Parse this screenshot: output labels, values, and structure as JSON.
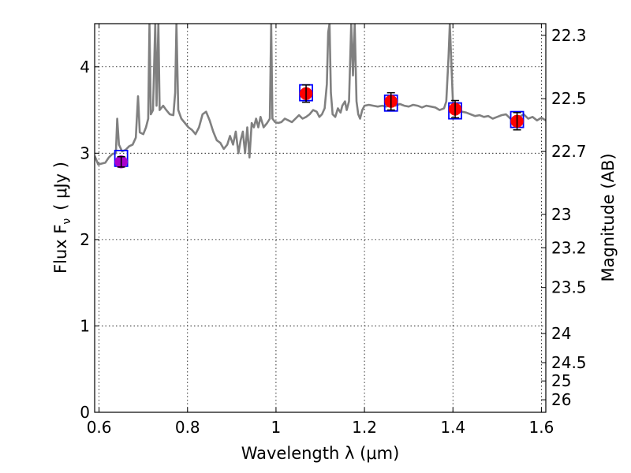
{
  "chart_data": {
    "type": "scatter",
    "title": "",
    "xlabel": "Wavelength  λ (μm)",
    "ylabel": "Flux  F",
    "ylabel_sub": "ν",
    "ylabel_unit": "( μJy )",
    "ylabel_right": "Magnitude (AB)",
    "xlim": [
      0.59,
      1.61
    ],
    "ylim": [
      0,
      4.5
    ],
    "grid": true,
    "x_ticks": [
      0.6,
      0.8,
      1.0,
      1.2,
      1.4,
      1.6
    ],
    "x_tick_labels": [
      "0.6",
      "0.8",
      "1",
      "1.2",
      "1.4",
      "1.6"
    ],
    "y_ticks": [
      0,
      1,
      2,
      3,
      4
    ],
    "y_tick_labels": [
      "0",
      "1",
      "2",
      "3",
      "4"
    ],
    "right_ticks": [
      {
        "flux": 4.365,
        "label": "22.3"
      },
      {
        "flux": 3.631,
        "label": "22.5"
      },
      {
        "flux": 3.02,
        "label": "22.7"
      },
      {
        "flux": 2.291,
        "label": "23"
      },
      {
        "flux": 1.905,
        "label": "23.2"
      },
      {
        "flux": 1.445,
        "label": "23.5"
      },
      {
        "flux": 0.912,
        "label": "24"
      },
      {
        "flux": 0.575,
        "label": "24.5"
      },
      {
        "flux": 0.363,
        "label": "25"
      },
      {
        "flux": 0.145,
        "label": "26"
      }
    ],
    "colors": {
      "spectrum": "#808080",
      "model_box": "#0000ff",
      "photometry": "#ff0000",
      "photometry_first": "#aa00cc",
      "error_bar": "#000000"
    },
    "series": [
      {
        "kind": "spectrum",
        "points": [
          [
            0.59,
            2.97
          ],
          [
            0.598,
            2.87
          ],
          [
            0.606,
            2.88
          ],
          [
            0.614,
            2.89
          ],
          [
            0.622,
            2.95
          ],
          [
            0.63,
            2.99
          ],
          [
            0.638,
            3.0
          ],
          [
            0.641,
            3.4
          ],
          [
            0.645,
            3.1
          ],
          [
            0.652,
            3.02
          ],
          [
            0.66,
            3.04
          ],
          [
            0.668,
            3.08
          ],
          [
            0.676,
            3.1
          ],
          [
            0.683,
            3.18
          ],
          [
            0.688,
            3.66
          ],
          [
            0.692,
            3.24
          ],
          [
            0.7,
            3.22
          ],
          [
            0.706,
            3.3
          ],
          [
            0.711,
            3.4
          ],
          [
            0.714,
            4.5
          ],
          [
            0.717,
            3.45
          ],
          [
            0.722,
            3.5
          ],
          [
            0.727,
            4.5
          ],
          [
            0.73,
            3.55
          ],
          [
            0.734,
            4.5
          ],
          [
            0.737,
            3.5
          ],
          [
            0.745,
            3.55
          ],
          [
            0.752,
            3.5
          ],
          [
            0.76,
            3.45
          ],
          [
            0.768,
            3.44
          ],
          [
            0.772,
            3.7
          ],
          [
            0.775,
            4.5
          ],
          [
            0.779,
            3.5
          ],
          [
            0.786,
            3.4
          ],
          [
            0.794,
            3.35
          ],
          [
            0.802,
            3.3
          ],
          [
            0.81,
            3.27
          ],
          [
            0.818,
            3.22
          ],
          [
            0.826,
            3.3
          ],
          [
            0.834,
            3.45
          ],
          [
            0.842,
            3.48
          ],
          [
            0.85,
            3.38
          ],
          [
            0.858,
            3.25
          ],
          [
            0.866,
            3.15
          ],
          [
            0.874,
            3.12
          ],
          [
            0.882,
            3.05
          ],
          [
            0.89,
            3.1
          ],
          [
            0.896,
            3.2
          ],
          [
            0.903,
            3.1
          ],
          [
            0.909,
            3.25
          ],
          [
            0.915,
            3.0
          ],
          [
            0.92,
            3.15
          ],
          [
            0.925,
            3.25
          ],
          [
            0.93,
            3.0
          ],
          [
            0.935,
            3.3
          ],
          [
            0.94,
            2.95
          ],
          [
            0.945,
            3.35
          ],
          [
            0.95,
            3.3
          ],
          [
            0.955,
            3.4
          ],
          [
            0.96,
            3.3
          ],
          [
            0.965,
            3.42
          ],
          [
            0.972,
            3.3
          ],
          [
            0.98,
            3.35
          ],
          [
            0.986,
            3.4
          ],
          [
            0.989,
            4.5
          ],
          [
            0.992,
            3.4
          ],
          [
            0.998,
            3.36
          ],
          [
            1.005,
            3.35
          ],
          [
            1.012,
            3.36
          ],
          [
            1.02,
            3.4
          ],
          [
            1.028,
            3.38
          ],
          [
            1.036,
            3.36
          ],
          [
            1.044,
            3.4
          ],
          [
            1.052,
            3.44
          ],
          [
            1.06,
            3.4
          ],
          [
            1.068,
            3.42
          ],
          [
            1.076,
            3.45
          ],
          [
            1.084,
            3.5
          ],
          [
            1.092,
            3.48
          ],
          [
            1.098,
            3.42
          ],
          [
            1.104,
            3.45
          ],
          [
            1.11,
            3.52
          ],
          [
            1.115,
            3.8
          ],
          [
            1.118,
            4.4
          ],
          [
            1.121,
            4.5
          ],
          [
            1.124,
            3.7
          ],
          [
            1.128,
            3.45
          ],
          [
            1.134,
            3.42
          ],
          [
            1.14,
            3.52
          ],
          [
            1.146,
            3.47
          ],
          [
            1.15,
            3.55
          ],
          [
            1.156,
            3.6
          ],
          [
            1.16,
            3.5
          ],
          [
            1.165,
            3.6
          ],
          [
            1.17,
            4.5
          ],
          [
            1.174,
            3.9
          ],
          [
            1.178,
            4.5
          ],
          [
            1.182,
            3.6
          ],
          [
            1.186,
            3.45
          ],
          [
            1.19,
            3.4
          ],
          [
            1.195,
            3.5
          ],
          [
            1.2,
            3.55
          ],
          [
            1.21,
            3.56
          ],
          [
            1.22,
            3.55
          ],
          [
            1.23,
            3.54
          ],
          [
            1.24,
            3.55
          ],
          [
            1.25,
            3.54
          ],
          [
            1.26,
            3.56
          ],
          [
            1.27,
            3.55
          ],
          [
            1.28,
            3.57
          ],
          [
            1.29,
            3.55
          ],
          [
            1.3,
            3.54
          ],
          [
            1.31,
            3.56
          ],
          [
            1.32,
            3.55
          ],
          [
            1.33,
            3.53
          ],
          [
            1.34,
            3.55
          ],
          [
            1.35,
            3.54
          ],
          [
            1.36,
            3.53
          ],
          [
            1.37,
            3.5
          ],
          [
            1.38,
            3.52
          ],
          [
            1.385,
            3.6
          ],
          [
            1.39,
            4.1
          ],
          [
            1.393,
            4.5
          ],
          [
            1.396,
            4.1
          ],
          [
            1.4,
            3.6
          ],
          [
            1.41,
            3.5
          ],
          [
            1.42,
            3.48
          ],
          [
            1.43,
            3.47
          ],
          [
            1.44,
            3.45
          ],
          [
            1.45,
            3.43
          ],
          [
            1.46,
            3.44
          ],
          [
            1.47,
            3.42
          ],
          [
            1.48,
            3.43
          ],
          [
            1.49,
            3.4
          ],
          [
            1.5,
            3.42
          ],
          [
            1.51,
            3.44
          ],
          [
            1.52,
            3.45
          ],
          [
            1.53,
            3.4
          ],
          [
            1.54,
            3.38
          ],
          [
            1.55,
            3.42
          ],
          [
            1.56,
            3.45
          ],
          [
            1.57,
            3.4
          ],
          [
            1.58,
            3.42
          ],
          [
            1.59,
            3.38
          ],
          [
            1.6,
            3.41
          ],
          [
            1.61,
            3.38
          ]
        ]
      },
      {
        "kind": "model_boxes",
        "points": [
          {
            "x": 0.65,
            "y": 2.94
          },
          {
            "x": 1.068,
            "y": 3.7
          },
          {
            "x": 1.26,
            "y": 3.58
          },
          {
            "x": 1.405,
            "y": 3.49
          },
          {
            "x": 1.545,
            "y": 3.39
          }
        ]
      },
      {
        "kind": "photometry",
        "points": [
          {
            "x": 0.65,
            "y": 2.9,
            "err": 0.06
          },
          {
            "x": 1.068,
            "y": 3.69,
            "err": 0.1
          },
          {
            "x": 1.26,
            "y": 3.6,
            "err": 0.1
          },
          {
            "x": 1.405,
            "y": 3.51,
            "err": 0.1
          },
          {
            "x": 1.545,
            "y": 3.37,
            "err": 0.1
          }
        ]
      }
    ]
  }
}
